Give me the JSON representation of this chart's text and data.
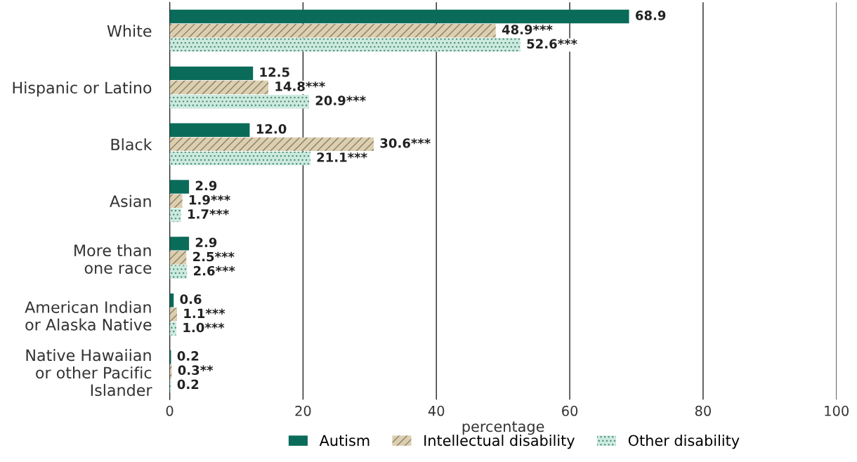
{
  "chart_data": {
    "type": "bar",
    "orientation": "horizontal",
    "xlabel": "percentage",
    "categories": [
      "White",
      "Hispanic or Latino",
      "Black",
      "Asian",
      "More than\none race",
      "American Indian\nor Alaska Native",
      "Native Hawaiian\nor other Pacific\nIslander"
    ],
    "series": [
      {
        "name": "Autism",
        "color": "#0b6b5a",
        "values": [
          68.9,
          12.5,
          12.0,
          2.9,
          2.9,
          0.6,
          0.2
        ],
        "value_labels": [
          "68.9",
          "12.5",
          "12.0",
          "2.9",
          "2.9",
          "0.6",
          "0.2"
        ]
      },
      {
        "name": "Intellectual disability",
        "color": "#dccfb0",
        "values": [
          48.9,
          14.8,
          30.6,
          1.9,
          2.5,
          1.1,
          0.3
        ],
        "value_labels": [
          "48.9***",
          "14.8***",
          "30.6***",
          "1.9***",
          "2.5***",
          "1.1***",
          "0.3**"
        ]
      },
      {
        "name": "Other disability",
        "color": "#cdeadf",
        "values": [
          52.6,
          20.9,
          21.1,
          1.7,
          2.6,
          1.0,
          0.2
        ],
        "value_labels": [
          "52.6***",
          "20.9***",
          "21.1***",
          "1.7***",
          "2.6***",
          "1.0***",
          "0.2"
        ]
      }
    ],
    "xlim": [
      0,
      100
    ],
    "xticks": [
      0,
      20,
      40,
      60,
      80,
      100
    ],
    "grid": "x",
    "legend": "bottom"
  }
}
